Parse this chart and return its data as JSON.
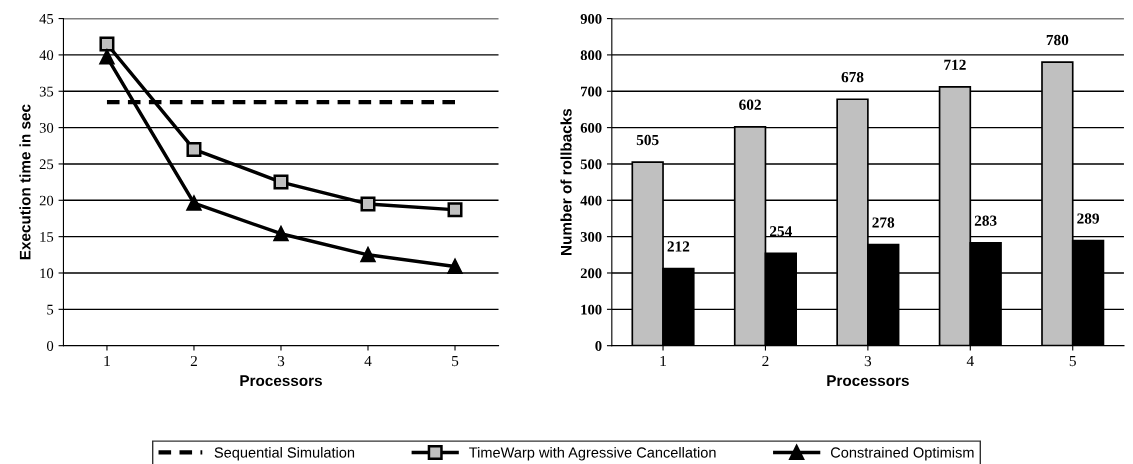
{
  "chart_data": [
    {
      "type": "line",
      "categories": [
        "1",
        "2",
        "3",
        "4",
        "5"
      ],
      "xlabel": "Processors",
      "ylabel": "Execution time in sec",
      "ylim": [
        0,
        45
      ],
      "yticks": [
        0,
        5,
        10,
        15,
        20,
        25,
        30,
        35,
        40,
        45
      ],
      "grid": "y",
      "legend": "bottom",
      "series": [
        {
          "name": "Sequential Simulation",
          "color": "#000000",
          "values": [
            33.5,
            33.5,
            33.5,
            33.5,
            33.5
          ],
          "line_style": "dashed",
          "marker": "none"
        },
        {
          "name": "TimeWarp with Agressive Cancellation",
          "color": "#c0c0c0",
          "values": [
            41.5,
            27,
            22.5,
            19.5,
            18.7
          ],
          "line_style": "solid",
          "marker": "square"
        },
        {
          "name": "Constrained Optimism",
          "color": "#000000",
          "values": [
            39.7,
            19.6,
            15.4,
            12.5,
            10.9
          ],
          "line_style": "solid",
          "marker": "triangle"
        }
      ]
    },
    {
      "type": "bar",
      "categories": [
        "1",
        "2",
        "3",
        "4",
        "5"
      ],
      "xlabel": "Processors",
      "ylabel": "Number of rollbacks",
      "ylim": [
        0,
        900
      ],
      "yticks": [
        0,
        100,
        200,
        300,
        400,
        500,
        600,
        700,
        800,
        900
      ],
      "grid": "y",
      "data_labels": true,
      "series": [
        {
          "color": "#c0c0c0",
          "values": [
            505,
            602,
            678,
            712,
            780
          ]
        },
        {
          "color": "#000000",
          "values": [
            212,
            254,
            278,
            283,
            289
          ]
        }
      ]
    }
  ]
}
